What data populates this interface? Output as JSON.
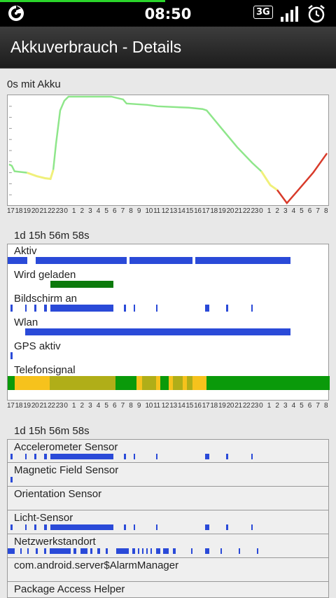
{
  "status_bar": {
    "time": "08:50",
    "network_type": "3G",
    "icons": [
      "app-logo-icon",
      "signal-bars-icon",
      "alarm-clock-icon"
    ]
  },
  "header": {
    "title": "Akkuverbrauch - Details"
  },
  "battery_section": {
    "duration": "0s mit Akku"
  },
  "hour_ticks": [
    "17",
    "18",
    "19",
    "20",
    "21",
    "22",
    "23",
    "0",
    "1",
    "2",
    "3",
    "4",
    "5",
    "6",
    "7",
    "8",
    "9",
    "10",
    "11",
    "12",
    "13",
    "14",
    "15",
    "16",
    "17",
    "18",
    "19",
    "20",
    "21",
    "22",
    "23",
    "0",
    "1",
    "2",
    "3",
    "4",
    "5",
    "6",
    "7",
    "8"
  ],
  "status_section": {
    "duration": "1d 15h 56m 58s",
    "rows": [
      {
        "label": "Aktiv"
      },
      {
        "label": "Wird geladen"
      },
      {
        "label": "Bildschirm an"
      },
      {
        "label": "Wlan"
      },
      {
        "label": "GPS aktiv"
      },
      {
        "label": "Telefonsignal"
      }
    ]
  },
  "sensor_section": {
    "duration": "1d 15h 56m 58s",
    "rows": [
      {
        "label": "Accelerometer Sensor"
      },
      {
        "label": "Magnetic Field Sensor"
      },
      {
        "label": "Orientation Sensor"
      },
      {
        "label": "Licht-Sensor"
      },
      {
        "label": "Netzwerkstandort"
      },
      {
        "label": "com.android.server$AlarmManager"
      },
      {
        "label": "Package Access Helper"
      }
    ]
  },
  "colors": {
    "battery_green": "#8ee68a",
    "battery_yellow": "#f0f07a",
    "battery_red": "#d83a2a",
    "timeline_blue": "#2a4ad8",
    "charging_green": "#0c7a0c",
    "signal_yellow": "#f6c21c",
    "signal_olive": "#b0ae18",
    "signal_green": "#0a9a0a"
  }
}
